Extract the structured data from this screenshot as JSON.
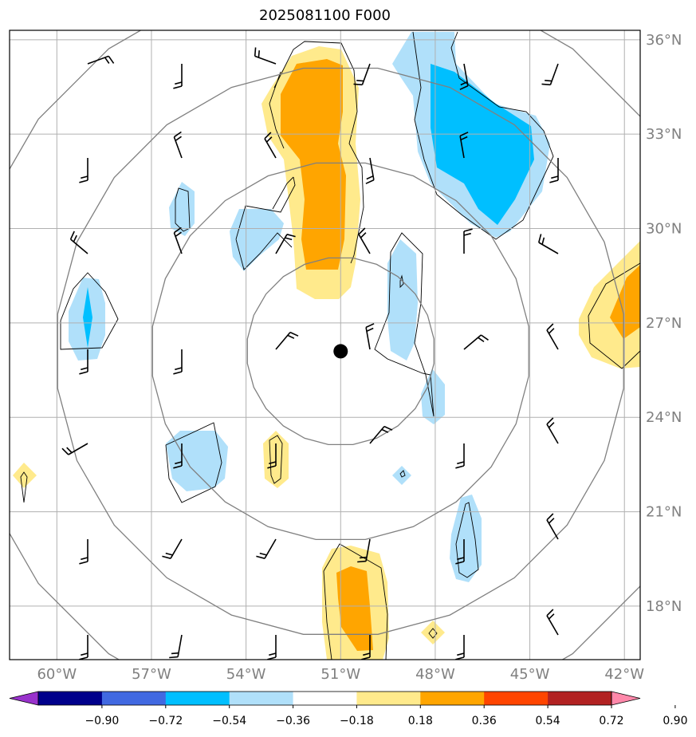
{
  "title": "2025081100 F000",
  "map": {
    "lon_range": [
      -61.5,
      -41.5
    ],
    "lat_range": [
      16.3,
      36.3
    ],
    "center_marker": {
      "lon": -51.0,
      "lat": 26.1
    },
    "lon_ticks": [
      {
        "value": -60,
        "label": "60°W"
      },
      {
        "value": -57,
        "label": "57°W"
      },
      {
        "value": -54,
        "label": "54°W"
      },
      {
        "value": -51,
        "label": "51°W"
      },
      {
        "value": -48,
        "label": "48°W"
      },
      {
        "value": -45,
        "label": "45°W"
      },
      {
        "value": -42,
        "label": "42°W"
      }
    ],
    "lat_ticks": [
      {
        "value": 36,
        "label": "36°N"
      },
      {
        "value": 33,
        "label": "33°N"
      },
      {
        "value": 30,
        "label": "30°N"
      },
      {
        "value": 27,
        "label": "27°N"
      },
      {
        "value": 24,
        "label": "24°N"
      },
      {
        "value": 21,
        "label": "21°N"
      },
      {
        "value": 18,
        "label": "18°N"
      }
    ],
    "colors": {
      "grid": "#b0b0b0",
      "range_ring": "#808080",
      "light_blue": "#b0e0fa",
      "cyan": "#00bfff",
      "light_yellow": "#ffea8c",
      "orange": "#ffa500"
    }
  },
  "colorbar": {
    "levels": [
      "−0.90",
      "−0.72",
      "−0.54",
      "−0.36",
      "−0.18",
      "0.18",
      "0.36",
      "0.54",
      "0.72",
      "0.90"
    ],
    "colors": [
      "#9932cc",
      "#00008b",
      "#4169e1",
      "#00bfff",
      "#b0e0fa",
      "#ffffff",
      "#ffea8c",
      "#ffa500",
      "#ff4500",
      "#b22222",
      "#ff88aa"
    ]
  }
}
